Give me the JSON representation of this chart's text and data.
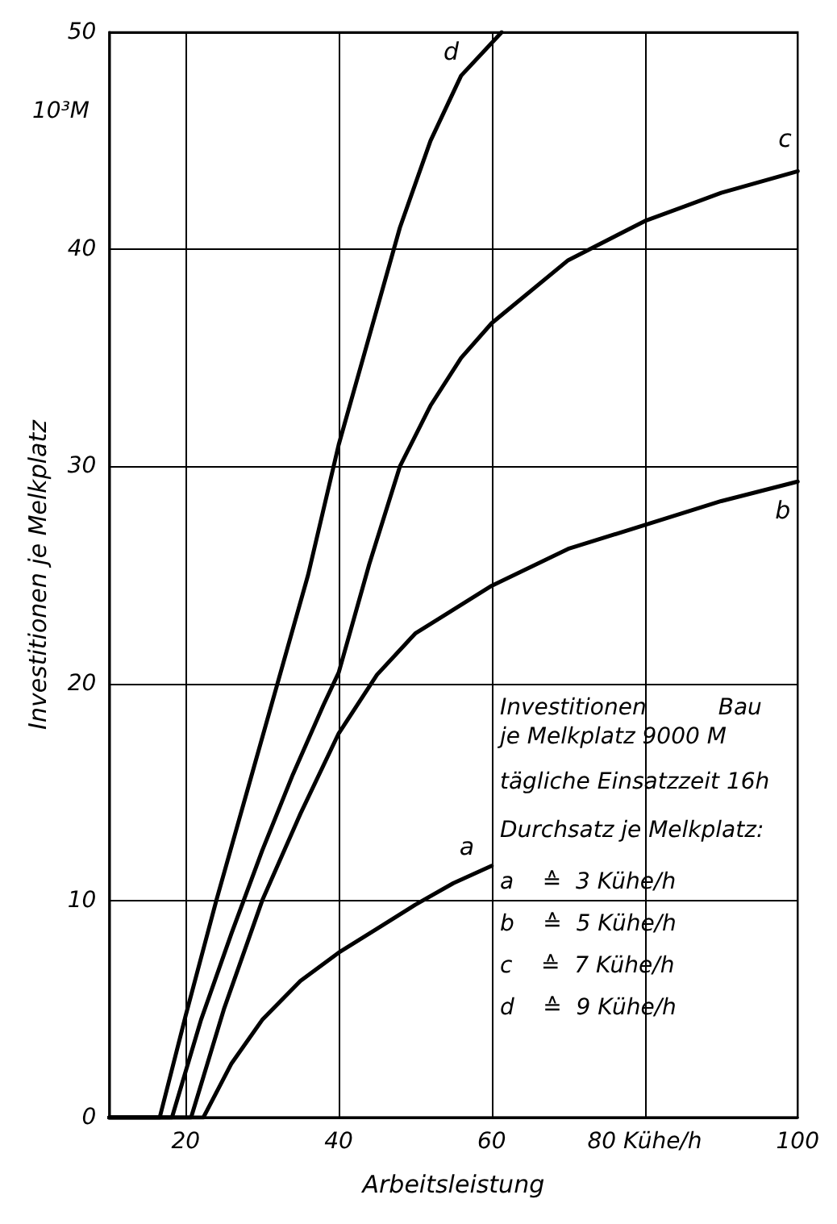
{
  "chart_data": {
    "type": "line",
    "xlabel": "Arbeitsleistung",
    "ylabel": "Investitionen je Melkplatz",
    "xlim": [
      10,
      100
    ],
    "xticks": [
      20,
      40,
      60,
      {
        "value": 80,
        "label": "80 Kühe/h"
      },
      100
    ],
    "ylim": [
      0,
      50
    ],
    "yticks": [
      0,
      10,
      20,
      30,
      40,
      50
    ],
    "grid": true,
    "legend": false,
    "marker": "none",
    "line_style": "solid",
    "series": [
      {
        "name": "a",
        "color": "#000000",
        "x": [
          10,
          22.3,
          26,
          30,
          35,
          40,
          45,
          50,
          55,
          60
        ],
        "values": [
          0,
          0,
          2.5,
          4.5,
          6.3,
          7.6,
          8.7,
          9.8,
          10.8,
          11.6
        ]
      },
      {
        "name": "b",
        "color": "#000000",
        "x": [
          10,
          20.7,
          25,
          30,
          35,
          40,
          45,
          50,
          60,
          70,
          80,
          90,
          100
        ],
        "values": [
          0,
          0,
          5,
          10,
          14,
          17.7,
          20.4,
          22.3,
          24.5,
          26.2,
          27.3,
          28.4,
          29.3
        ]
      },
      {
        "name": "c",
        "color": "#000000",
        "x": [
          10,
          18.2,
          22,
          26,
          30,
          34,
          38,
          40,
          42,
          44,
          48,
          52,
          56,
          60,
          70,
          80,
          90,
          100
        ],
        "values": [
          0,
          0,
          4.5,
          8.5,
          12.3,
          15.8,
          19,
          20.5,
          23,
          25.5,
          30,
          32.8,
          35,
          36.6,
          39.5,
          41.3,
          42.6,
          43.6
        ]
      },
      {
        "name": "d",
        "color": "#000000",
        "x": [
          10,
          16.6,
          20,
          24,
          28,
          32,
          36,
          40,
          44,
          48,
          52,
          56,
          61.3
        ],
        "values": [
          0,
          0,
          4.7,
          10,
          15,
          20,
          25,
          31,
          36,
          41,
          45,
          48,
          50
        ]
      }
    ],
    "annotations": [
      "10³M",
      "Investitionen          Bau",
      "je Melkplatz 9000 M",
      "tägliche Einsatzzeit 16h",
      "Durchsatz je Melkplatz:",
      "a    ≙  3 Kühe/h",
      "b    ≙  5 Kühe/h",
      "c    ≙  7 Kühe/h",
      "d    ≙  9 Kühe/h"
    ]
  }
}
